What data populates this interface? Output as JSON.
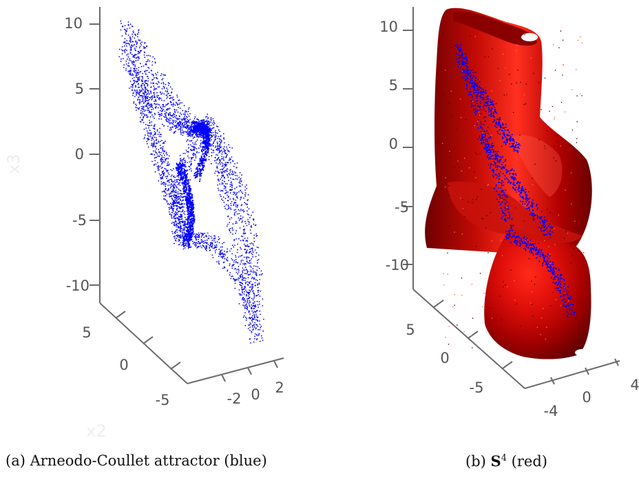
{
  "figures": [
    {
      "id": "a",
      "caption_label": "(a)",
      "caption_text": "Arneodo-Coullet attractor (blue)"
    },
    {
      "id": "b",
      "caption_label": "(b)",
      "caption_symbol": "S",
      "caption_superscript": "4",
      "caption_text": "(red)"
    }
  ],
  "chart_data": [
    {
      "type": "scatter",
      "title": "",
      "projection": "3d",
      "z_tick_labels": [
        "10",
        "5",
        "0",
        "-5",
        "-10"
      ],
      "y_tick_labels": [
        "5",
        "0",
        "-5"
      ],
      "x_tick_labels": [
        "-2",
        "0",
        "2"
      ],
      "xlabel": "",
      "ylabel": "x2",
      "zlabel": "x3",
      "zlim": [
        -12,
        11
      ],
      "series": [
        {
          "color": "#0000ff",
          "marker": "point"
        }
      ]
    },
    {
      "type": "scatter",
      "title": "",
      "projection": "3d",
      "z_tick_labels": [
        "10",
        "5",
        "0",
        "-5",
        "-10"
      ],
      "y_tick_labels": [
        "5",
        "0",
        "-5"
      ],
      "x_tick_labels": [
        "-4",
        "0",
        "4"
      ],
      "zlim": [
        -13,
        12
      ],
      "series": [
        {
          "color": "#0000ff",
          "marker": "point"
        },
        {
          "color": "#cc0000",
          "marker": "surface"
        }
      ]
    }
  ]
}
